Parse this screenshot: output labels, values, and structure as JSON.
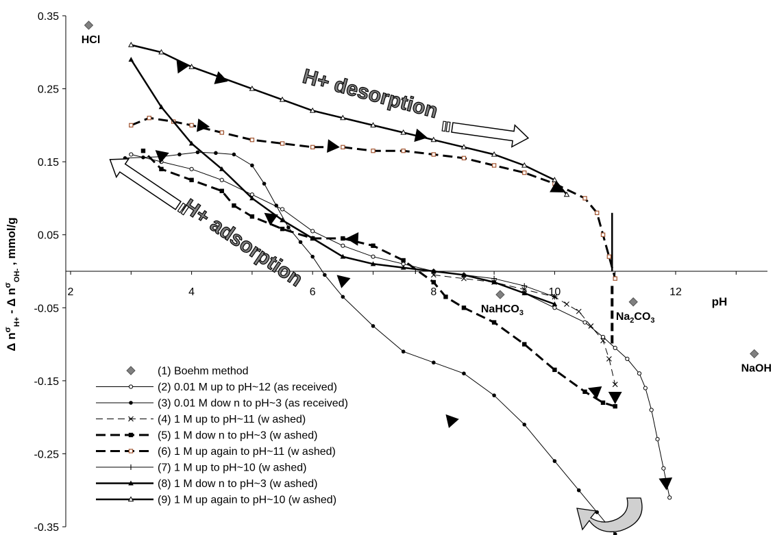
{
  "chart_data": {
    "type": "line",
    "xlabel": "pH",
    "ylabel": "Δ nσH+ - Δ nσOH- , mmol/g",
    "xlim": [
      2,
      14
    ],
    "ylim": [
      -0.35,
      0.35
    ],
    "x_ticks": [
      "2",
      "4",
      "6",
      "8",
      "10",
      "12"
    ],
    "y_ticks": [
      "0.35",
      "0.25",
      "0.15",
      "0.05",
      "-0.05",
      "-0.15",
      "-0.25",
      "-0.35"
    ],
    "grid": false,
    "legend_position": "bottom-left",
    "boehm_points": [
      {
        "label": "HCl",
        "x": 2.3,
        "y": 0.337
      },
      {
        "label": "NaHCO3",
        "x": 9.1,
        "y": -0.032
      },
      {
        "label": "Na2CO3",
        "x": 11.3,
        "y": -0.042
      },
      {
        "label": "NaOH",
        "x": 13.3,
        "y": -0.113
      }
    ],
    "series": [
      {
        "name": "(1) Boehm method",
        "style": "diamond"
      },
      {
        "name": "(2) 0.01 M up to pH~12 (as received)",
        "style": "thin-open-circle",
        "x": [
          3.0,
          3.5,
          4.0,
          4.5,
          5.0,
          5.5,
          6.0,
          6.5,
          7.0,
          7.5,
          8.0,
          8.5,
          9.0,
          9.5,
          10.0,
          10.5,
          10.8,
          11.0,
          11.2,
          11.4,
          11.5,
          11.6,
          11.7,
          11.8,
          11.85,
          11.9
        ],
        "y": [
          0.16,
          0.15,
          0.14,
          0.125,
          0.105,
          0.085,
          0.055,
          0.035,
          0.02,
          0.01,
          0.0,
          -0.005,
          -0.015,
          -0.03,
          -0.05,
          -0.07,
          -0.09,
          -0.105,
          -0.12,
          -0.14,
          -0.16,
          -0.19,
          -0.23,
          -0.27,
          -0.29,
          -0.31
        ]
      },
      {
        "name": "(3) 0.01 M dow n to pH~3 (as received)",
        "style": "thin-filled-circle",
        "x": [
          11.0,
          10.7,
          10.4,
          10.0,
          9.5,
          9.0,
          8.5,
          8.0,
          7.5,
          7.0,
          6.5,
          6.2,
          6.0,
          5.8,
          5.6,
          5.4,
          5.2,
          5.0,
          4.7,
          4.4,
          4.1,
          3.8,
          3.5,
          3.2,
          2.9
        ],
        "y": [
          -0.36,
          -0.33,
          -0.3,
          -0.26,
          -0.21,
          -0.17,
          -0.14,
          -0.125,
          -0.11,
          -0.075,
          -0.035,
          -0.005,
          0.02,
          0.04,
          0.06,
          0.09,
          0.12,
          0.145,
          0.16,
          0.162,
          0.163,
          0.16,
          0.157,
          0.156,
          0.155
        ]
      },
      {
        "name": "(4) 1 M up to pH~11 (w ashed)",
        "style": "thin-x-dashed",
        "x": [
          8.0,
          8.5,
          9.0,
          9.5,
          10.0,
          10.2,
          10.4,
          10.6,
          10.8,
          10.9,
          11.0
        ],
        "y": [
          -0.005,
          -0.01,
          -0.015,
          -0.025,
          -0.035,
          -0.045,
          -0.055,
          -0.075,
          -0.095,
          -0.12,
          -0.155
        ]
      },
      {
        "name": "(5) 1 M dow n to pH~3 (w ashed)",
        "style": "thick-dash-square",
        "x": [
          11.0,
          10.8,
          10.5,
          10.0,
          9.5,
          9.0,
          8.5,
          8.2,
          8.0,
          7.5,
          7.0,
          6.5,
          6.0,
          5.5,
          5.0,
          4.7,
          4.5,
          4.0,
          3.5,
          3.2
        ],
        "y": [
          -0.185,
          -0.18,
          -0.165,
          -0.135,
          -0.1,
          -0.07,
          -0.05,
          -0.035,
          -0.015,
          0.015,
          0.035,
          0.045,
          0.045,
          0.058,
          0.075,
          0.09,
          0.11,
          0.125,
          0.14,
          0.165
        ]
      },
      {
        "name": "(6) 1 M up again to pH~11 (w ashed)",
        "style": "thick-dash-open-square",
        "x": [
          3.0,
          3.3,
          3.7,
          4.0,
          4.5,
          5.0,
          5.5,
          6.0,
          6.5,
          7.0,
          7.5,
          8.0,
          8.5,
          9.0,
          9.5,
          10.0,
          10.5,
          10.7,
          10.8,
          10.9,
          11.0
        ],
        "y": [
          0.2,
          0.21,
          0.205,
          0.2,
          0.19,
          0.18,
          0.175,
          0.17,
          0.17,
          0.165,
          0.165,
          0.16,
          0.155,
          0.145,
          0.135,
          0.12,
          0.1,
          0.08,
          0.05,
          0.02,
          -0.01
        ]
      },
      {
        "name": "(7) 1 M up to pH~10 (w ashed)",
        "style": "thin-plus",
        "x": [
          7.7,
          8.0,
          8.5,
          9.0,
          9.5,
          10.0
        ],
        "y": [
          0.0,
          0.0,
          -0.005,
          -0.01,
          -0.02,
          -0.035
        ]
      },
      {
        "name": "(8) 1 M dow n to pH~3 (w ashed)",
        "style": "thick-filled-triangle",
        "x": [
          10.0,
          9.5,
          9.0,
          8.5,
          8.0,
          7.5,
          7.0,
          6.5,
          6.0,
          5.5,
          5.0,
          4.5,
          4.0,
          3.5,
          3.0
        ],
        "y": [
          -0.045,
          -0.03,
          -0.015,
          -0.005,
          0.0,
          0.005,
          0.01,
          0.02,
          0.045,
          0.07,
          0.1,
          0.14,
          0.175,
          0.225,
          0.29
        ]
      },
      {
        "name": "(9) 1 M up again to pH~10 (w ashed)",
        "style": "thick-open-triangle",
        "x": [
          3.0,
          3.5,
          4.0,
          4.5,
          5.0,
          5.5,
          6.0,
          6.5,
          7.0,
          7.5,
          8.0,
          8.5,
          9.0,
          9.5,
          10.0,
          10.2
        ],
        "y": [
          0.31,
          0.3,
          0.28,
          0.265,
          0.25,
          0.235,
          0.22,
          0.21,
          0.2,
          0.19,
          0.18,
          0.17,
          0.16,
          0.145,
          0.125,
          0.105
        ]
      }
    ],
    "annotations": [
      "H+ desorption",
      "H+ adsorption"
    ]
  }
}
